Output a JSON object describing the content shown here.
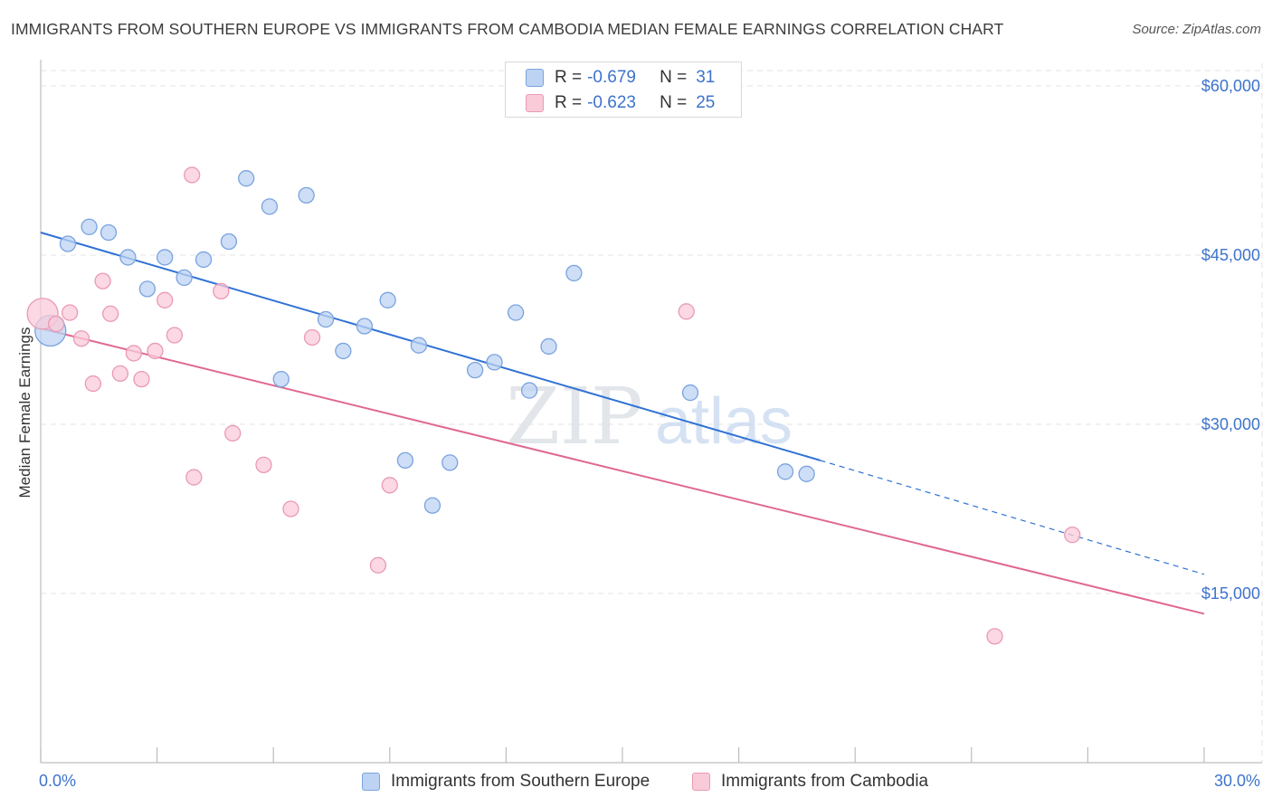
{
  "title": "IMMIGRANTS FROM SOUTHERN EUROPE VS IMMIGRANTS FROM CAMBODIA MEDIAN FEMALE EARNINGS CORRELATION CHART",
  "source": "Source: ZipAtlas.com",
  "watermark": {
    "zip": "ZIP",
    "atlas": "atlas"
  },
  "legend_top": [
    {
      "r_label": "R =",
      "r_value": "-0.679",
      "n_label": "N =",
      "n_value": "31"
    },
    {
      "r_label": "R =",
      "r_value": "-0.623",
      "n_label": "N =",
      "n_value": "25"
    }
  ],
  "legend_bottom": [
    {
      "label": "Immigrants from Southern Europe"
    },
    {
      "label": "Immigrants from Cambodia"
    }
  ],
  "chart_data": {
    "type": "scatter",
    "ylabel": "Median Female Earnings",
    "xlim": [
      0,
      30
    ],
    "ylim": [
      0,
      62000
    ],
    "x_tick_labels": [
      "0.0%",
      "30.0%"
    ],
    "y_ticks": [
      {
        "value": 15000,
        "label": "$15,000"
      },
      {
        "value": 30000,
        "label": "$30,000"
      },
      {
        "value": 45000,
        "label": "$45,000"
      },
      {
        "value": 60000,
        "label": "$60,000"
      }
    ],
    "grid": true,
    "colors": {
      "blue_fill": "#bcd3f3",
      "blue_stroke": "#7aa3df",
      "blue_line": "#2f72d4",
      "pink_fill": "#f9cbd9",
      "pink_stroke": "#ea9ab3",
      "pink_line": "#e0688f",
      "axis_label": "#3d73cc"
    },
    "series": [
      {
        "name": "Immigrants from Southern Europe",
        "color": "blue",
        "points": [
          {
            "x": 0.25,
            "y": 38300,
            "big": true
          },
          {
            "x": 0.7,
            "y": 46000
          },
          {
            "x": 1.25,
            "y": 47500
          },
          {
            "x": 1.75,
            "y": 47000
          },
          {
            "x": 2.25,
            "y": 44800
          },
          {
            "x": 2.75,
            "y": 42000
          },
          {
            "x": 3.2,
            "y": 44800
          },
          {
            "x": 3.7,
            "y": 43000
          },
          {
            "x": 4.2,
            "y": 44600
          },
          {
            "x": 4.85,
            "y": 46200
          },
          {
            "x": 5.3,
            "y": 51800
          },
          {
            "x": 5.9,
            "y": 49300
          },
          {
            "x": 6.2,
            "y": 34000
          },
          {
            "x": 6.85,
            "y": 50300
          },
          {
            "x": 7.35,
            "y": 39300
          },
          {
            "x": 7.8,
            "y": 36500
          },
          {
            "x": 8.35,
            "y": 38700
          },
          {
            "x": 8.95,
            "y": 41000
          },
          {
            "x": 9.4,
            "y": 26800
          },
          {
            "x": 9.75,
            "y": 37000
          },
          {
            "x": 10.1,
            "y": 22800
          },
          {
            "x": 10.55,
            "y": 26600
          },
          {
            "x": 11.2,
            "y": 34800
          },
          {
            "x": 11.7,
            "y": 35500
          },
          {
            "x": 12.25,
            "y": 39900
          },
          {
            "x": 12.6,
            "y": 33000
          },
          {
            "x": 13.1,
            "y": 36900
          },
          {
            "x": 13.75,
            "y": 43400
          },
          {
            "x": 16.75,
            "y": 32800
          },
          {
            "x": 19.2,
            "y": 25800
          },
          {
            "x": 19.75,
            "y": 25600
          }
        ],
        "trend": {
          "x0": 0,
          "y0": 47000,
          "x1": 20.1,
          "y1": 26800,
          "dash_to_x": 30,
          "dash_to_y": 16700
        }
      },
      {
        "name": "Immigrants from Cambodia",
        "color": "pink",
        "points": [
          {
            "x": 0.05,
            "y": 39800,
            "big": true
          },
          {
            "x": 0.4,
            "y": 38900
          },
          {
            "x": 0.75,
            "y": 39900
          },
          {
            "x": 1.05,
            "y": 37600
          },
          {
            "x": 1.35,
            "y": 33600
          },
          {
            "x": 1.6,
            "y": 42700
          },
          {
            "x": 1.8,
            "y": 39800
          },
          {
            "x": 2.05,
            "y": 34500
          },
          {
            "x": 2.4,
            "y": 36300
          },
          {
            "x": 2.6,
            "y": 34000
          },
          {
            "x": 2.95,
            "y": 36500
          },
          {
            "x": 3.2,
            "y": 41000
          },
          {
            "x": 3.45,
            "y": 37900
          },
          {
            "x": 3.9,
            "y": 52100
          },
          {
            "x": 3.95,
            "y": 25300
          },
          {
            "x": 4.65,
            "y": 41800
          },
          {
            "x": 4.95,
            "y": 29200
          },
          {
            "x": 5.75,
            "y": 26400
          },
          {
            "x": 6.45,
            "y": 22500
          },
          {
            "x": 7.0,
            "y": 37700
          },
          {
            "x": 8.7,
            "y": 17500
          },
          {
            "x": 9.0,
            "y": 24600
          },
          {
            "x": 16.65,
            "y": 40000
          },
          {
            "x": 24.6,
            "y": 11200
          },
          {
            "x": 26.6,
            "y": 20200
          }
        ],
        "trend": {
          "x0": 0,
          "y0": 38500,
          "x1": 30,
          "y1": 13200
        }
      }
    ]
  }
}
